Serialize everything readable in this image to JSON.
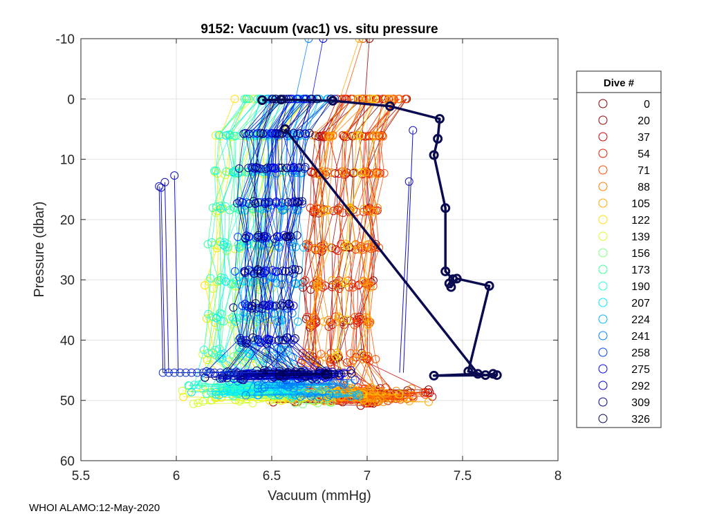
{
  "chart_data": {
    "type": "scatter",
    "title": "9152: Vacuum (vac1) vs. situ pressure",
    "xlabel": "Vacuum (mmHg)",
    "ylabel": "Pressure (dbar)",
    "xlim": [
      5.5,
      8
    ],
    "ylim": [
      -10,
      60
    ],
    "y_reversed": true,
    "grid": true,
    "x_ticks": [
      "5.5",
      "6",
      "6.5",
      "7",
      "7.5",
      "8"
    ],
    "y_ticks": [
      "-10",
      "0",
      "10",
      "20",
      "30",
      "40",
      "50",
      "60"
    ],
    "legend": {
      "title": "Dive #",
      "position": "right",
      "entries": [
        "0",
        "20",
        "37",
        "54",
        "71",
        "88",
        "105",
        "122",
        "139",
        "156",
        "173",
        "190",
        "207",
        "224",
        "241",
        "258",
        "275",
        "292",
        "309",
        "326"
      ],
      "colors": [
        "#800000",
        "#9a0000",
        "#d40000",
        "#e81e00",
        "#ff4d00",
        "#ff7f00",
        "#ffaa00",
        "#ffe000",
        "#d4ff2a",
        "#7fff7f",
        "#3dff99",
        "#2affd4",
        "#00e8ff",
        "#00b4ff",
        "#0080ff",
        "#0040ff",
        "#0000ff",
        "#0000d4",
        "#00008a",
        "#000050"
      ]
    },
    "highlight_series": {
      "name": "326",
      "color": "#0a0a50",
      "vacuum": [
        6.45,
        6.55,
        6.82,
        7.12,
        7.38,
        7.37,
        7.35,
        7.41,
        7.41,
        7.45,
        7.43,
        7.44,
        7.47,
        7.64,
        7.53,
        7.62,
        7.66,
        7.68,
        7.35,
        7.58,
        6.57
      ],
      "pressure": [
        0.2,
        0.1,
        0.3,
        1.2,
        3.3,
        6.6,
        9.3,
        18.1,
        28.6,
        29.9,
        30.6,
        31.2,
        29.8,
        31.0,
        45.2,
        45.8,
        45.6,
        45.8,
        45.9,
        45.6,
        5.0
      ]
    },
    "outliers": {
      "color": "#1010c0",
      "vacuum": [
        5.91,
        5.92,
        5.94,
        5.99,
        7.22,
        7.24
      ],
      "pressure": [
        14.5,
        14.7,
        13.8,
        12.7,
        13.7,
        5.2
      ]
    }
  },
  "footer": {
    "text": "WHOI ALAMO:12-May-2020"
  }
}
